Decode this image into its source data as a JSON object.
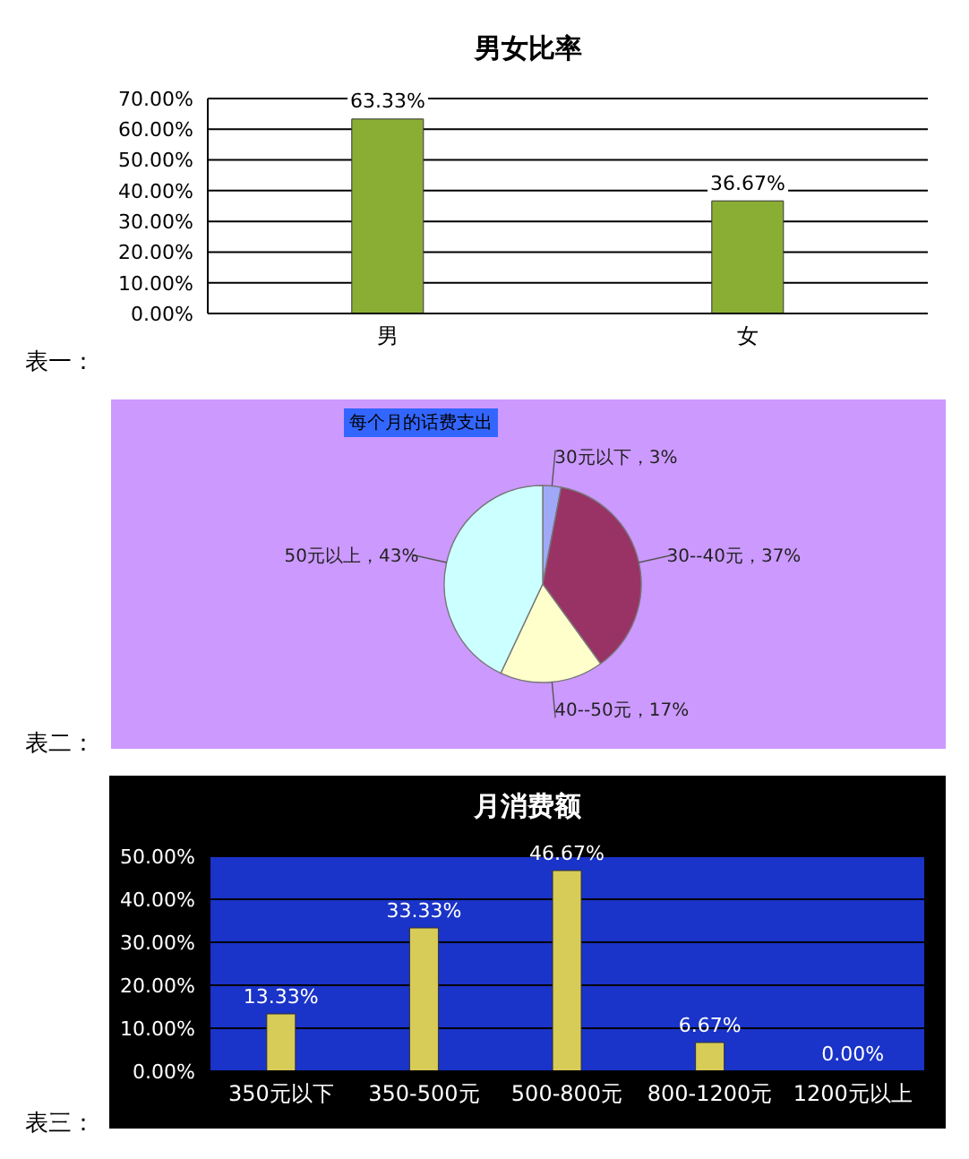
{
  "chart_data": [
    {
      "type": "bar",
      "title": "男女比率",
      "categories": [
        "男",
        "女"
      ],
      "values": [
        63.33,
        36.67
      ],
      "color": "#8aae34",
      "value_labels": [
        "63.33%",
        "36.67%"
      ],
      "ylim": [
        0,
        70
      ],
      "yticks": [
        {
          "value": 0,
          "label": "0.00%"
        },
        {
          "value": 10,
          "label": "10.00%"
        },
        {
          "value": 20,
          "label": "20.00%"
        },
        {
          "value": 30,
          "label": "30.00%"
        },
        {
          "value": 40,
          "label": "40.00%"
        },
        {
          "value": 50,
          "label": "50.00%"
        },
        {
          "value": 60,
          "label": "60.00%"
        },
        {
          "value": 70,
          "label": "70.00%"
        }
      ],
      "grid": "y",
      "annotations": [
        "表一："
      ]
    },
    {
      "type": "pie",
      "title": "每个月的话费支出",
      "categories": [
        "30元以下",
        "30--40元",
        "40--50元",
        "50元以上"
      ],
      "values": [
        3,
        37,
        17,
        43
      ],
      "colors": [
        "#a0a8f8",
        "#993366",
        "#ffffcc",
        "#ccffff"
      ],
      "value_labels": [
        "，3%",
        "，37%",
        "，17%",
        "，43%"
      ],
      "annotations": [
        "表二："
      ]
    },
    {
      "type": "bar",
      "title": "月消费额",
      "categories": [
        "350元以下",
        "350-500元",
        "500-800元",
        "800-1200元",
        "1200元以上"
      ],
      "values": [
        13.33,
        33.33,
        46.67,
        6.67,
        0
      ],
      "color": "#d8cc58",
      "value_labels": [
        "13.33%",
        "33.33%",
        "46.67%",
        "6.67%",
        "0.00%"
      ],
      "ylim": [
        0,
        50
      ],
      "yticks": [
        {
          "value": 0,
          "label": "0.00%"
        },
        {
          "value": 10,
          "label": "10.00%"
        },
        {
          "value": 20,
          "label": "20.00%"
        },
        {
          "value": 30,
          "label": "30.00%"
        },
        {
          "value": 40,
          "label": "40.00%"
        },
        {
          "value": 50,
          "label": "50.00%"
        }
      ],
      "grid": "y",
      "annotations": [
        "表三："
      ]
    }
  ]
}
